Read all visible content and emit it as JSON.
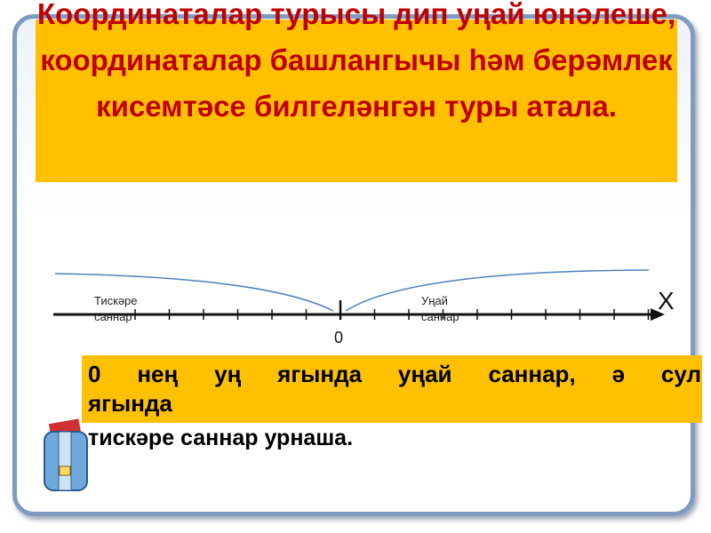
{
  "title": "Координаталар турысы дип уңай юнәлеше, координаталар башлангычы һәм берәмлек кисемтәсе билгеләнгән туры атала.",
  "number_line": {
    "axis_label": "X",
    "zero_label": "0",
    "left_label": "Тискәре саннар",
    "right_label": "Уңай саннар"
  },
  "statement": {
    "line1": "0 нең уң ягында уңай саннар, ә сул",
    "line2": "ягында",
    "line3": "тискәре саннар урнаша."
  },
  "colors": {
    "highlight": "#ffc000",
    "title": "#c00000",
    "frame": "#7f9cc0",
    "brace": "#4f81bd"
  }
}
